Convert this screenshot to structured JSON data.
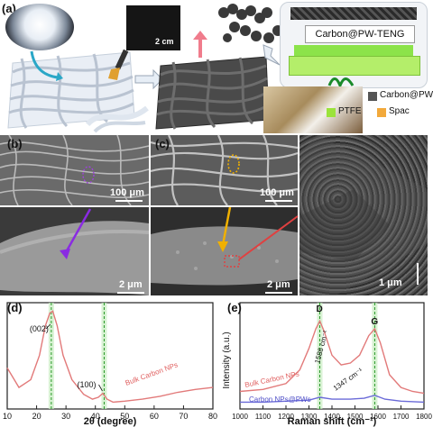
{
  "panel_a": {
    "label": "(a)",
    "scale_text": "2 cm",
    "teng_label": "Carbon@PW-TENG",
    "legend": [
      {
        "text": "Carbon@PW",
        "color": "#555555"
      },
      {
        "text": "PTFE",
        "color": "#9be33b"
      },
      {
        "text": "Spac",
        "color": "#f2a93b"
      }
    ]
  },
  "panel_b": {
    "label": "(b)",
    "scale_top": "100 μm",
    "scale_bottom": "2 μm"
  },
  "panel_c": {
    "label": "(c)",
    "scale_top": "100 μm",
    "scale_bottom": "2 μm",
    "scale_right": "1 μm"
  },
  "panel_d": {
    "label": "(d)",
    "xlabel": "2θ (degree)",
    "series_label": "Bulk Carbon NPs",
    "peak_labels": [
      "(002)",
      "(100)"
    ],
    "x_ticks": [
      "10",
      "20",
      "30",
      "40",
      "50",
      "60",
      "70",
      "80"
    ]
  },
  "panel_e": {
    "label": "(e)",
    "xlabel": "Raman shift (cm⁻¹)",
    "ylabel": "Intensity (a.u.)",
    "peak_letters": [
      "D",
      "G"
    ],
    "ann_1586": "1586 cm⁻¹",
    "ann_1347": "1347 cm⁻¹",
    "series_labels": [
      "Bulk Carbon NPs",
      "Carbon NPs@PWs"
    ],
    "x_ticks": [
      "1000",
      "1100",
      "1200",
      "1300",
      "1400",
      "1500",
      "1600",
      "1700",
      "1800"
    ]
  },
  "chart_data": [
    {
      "type": "line",
      "xlabel": "2θ (degree)",
      "ylabel": "",
      "xlim": [
        10,
        80
      ],
      "x_ticks": [
        10,
        20,
        30,
        40,
        50,
        60,
        70,
        80
      ],
      "series": [
        {
          "name": "Bulk Carbon NPs",
          "color": "#e27a7a",
          "x": [
            10,
            14,
            18,
            21,
            23,
            24.5,
            25.5,
            27,
            29,
            32,
            36,
            39,
            41,
            42.5,
            44,
            46,
            50,
            56,
            62,
            68,
            74,
            80
          ],
          "y": [
            0.42,
            0.22,
            0.3,
            0.55,
            0.85,
            0.98,
            1.0,
            0.85,
            0.55,
            0.3,
            0.15,
            0.1,
            0.12,
            0.16,
            0.1,
            0.07,
            0.08,
            0.1,
            0.13,
            0.17,
            0.2,
            0.22
          ]
        }
      ],
      "annotations": [
        {
          "text": "(002)",
          "x": 25
        },
        {
          "text": "(100)",
          "x": 43
        }
      ],
      "vbands": [
        25,
        43
      ]
    },
    {
      "type": "line",
      "xlabel": "Raman shift (cm⁻¹)",
      "ylabel": "Intensity (a.u.)",
      "xlim": [
        1000,
        1800
      ],
      "x_ticks": [
        1000,
        1100,
        1200,
        1300,
        1400,
        1500,
        1600,
        1700,
        1800
      ],
      "series": [
        {
          "name": "Bulk Carbon NPs",
          "color": "#e27a7a",
          "x": [
            1000,
            1100,
            1200,
            1260,
            1300,
            1330,
            1347,
            1365,
            1400,
            1440,
            1480,
            1520,
            1560,
            1586,
            1610,
            1650,
            1700,
            1750,
            1800
          ],
          "y": [
            0.18,
            0.2,
            0.26,
            0.4,
            0.62,
            0.82,
            0.9,
            0.8,
            0.55,
            0.45,
            0.47,
            0.55,
            0.75,
            0.82,
            0.68,
            0.35,
            0.22,
            0.18,
            0.16
          ]
        },
        {
          "name": "Carbon NPs@PWs",
          "color": "#6a6ad8",
          "x": [
            1000,
            1100,
            1200,
            1300,
            1347,
            1400,
            1480,
            1540,
            1586,
            1630,
            1700,
            1800
          ],
          "y": [
            0.07,
            0.07,
            0.08,
            0.09,
            0.12,
            0.1,
            0.1,
            0.11,
            0.14,
            0.1,
            0.08,
            0.07
          ]
        }
      ],
      "annotations": [
        {
          "text": "D",
          "x": 1347
        },
        {
          "text": "G",
          "x": 1586
        }
      ],
      "vbands": [
        1347,
        1586
      ]
    }
  ]
}
